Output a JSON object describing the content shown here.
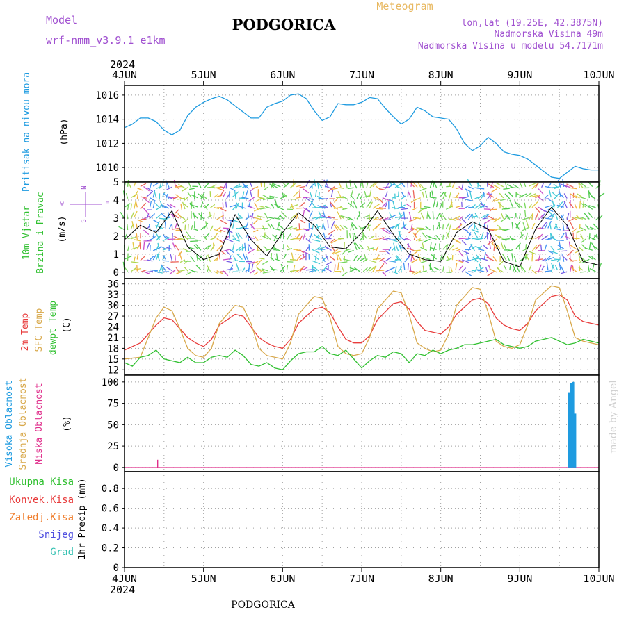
{
  "header": {
    "model_label": "Model",
    "model_name": "wrf-nmm_v3.9.1 e1km",
    "title": "PODGORICA",
    "meteogram": "Meteogram",
    "lonlat": "lon,lat (19.25E, 42.3875N)",
    "elevation": "Nadmorska Visina 49m",
    "model_elevation": "Nadmorska Visina u modelu 54.7171m",
    "year": "2024",
    "footer_title": "PODGORICA",
    "credit": "made by Angel"
  },
  "colors": {
    "pressure": "#1e9be0",
    "temp2m": "#e83c3c",
    "sfc": "#d8a84a",
    "dewpt": "#30c030",
    "high_cloud": "#1e9be0",
    "mid_cloud": "#d8a84a",
    "low_cloud": "#e0308c",
    "model": "#a050d0",
    "meteogram": "#e8b860",
    "wind_total": "#30c030",
    "total_precip": "#30c030",
    "conv_precip": "#e83c3c",
    "frozen_precip": "#f08030",
    "snow": "#5050e0",
    "hail": "#30c0b0"
  },
  "chart_data": [
    {
      "type": "line",
      "id": "pressure",
      "ylabel": "(hPa)",
      "side_labels": [
        "Pritisak na nivou mora"
      ],
      "x_ticks": [
        "4JUN",
        "5JUN",
        "6JUN",
        "7JUN",
        "8JUN",
        "9JUN",
        "10JUN"
      ],
      "ylim": [
        1008.8,
        1016.8
      ],
      "y_ticks": [
        1010,
        1012,
        1014,
        1016
      ],
      "grid": true,
      "series": [
        {
          "x": [
            0,
            0.1,
            0.2,
            0.3,
            0.4,
            0.5,
            0.6,
            0.7,
            0.8,
            0.9,
            1.0,
            1.1,
            1.2,
            1.3,
            1.4,
            1.5,
            1.6,
            1.7,
            1.8,
            1.9,
            2.0,
            2.1,
            2.2,
            2.3,
            2.4,
            2.5,
            2.6,
            2.7,
            2.8,
            2.9,
            3.0,
            3.1,
            3.2,
            3.3,
            3.4,
            3.5,
            3.6,
            3.7,
            3.8,
            3.9,
            4.0,
            4.1,
            4.2,
            4.3,
            4.4,
            4.5,
            4.6,
            4.7,
            4.8,
            4.9,
            5.0,
            5.1,
            5.2,
            5.3,
            5.4,
            5.5,
            5.6,
            5.7,
            5.8,
            5.9,
            6.0
          ],
          "values": [
            1013.3,
            1013.6,
            1014.1,
            1014.1,
            1013.8,
            1013.1,
            1012.7,
            1013.1,
            1014.3,
            1015.0,
            1015.4,
            1015.7,
            1015.9,
            1015.6,
            1015.1,
            1014.6,
            1014.1,
            1014.1,
            1015.0,
            1015.3,
            1015.5,
            1016.0,
            1016.1,
            1015.7,
            1014.7,
            1013.9,
            1014.2,
            1015.3,
            1015.2,
            1015.2,
            1015.4,
            1015.8,
            1015.7,
            1014.9,
            1014.2,
            1013.6,
            1014.0,
            1015.0,
            1014.7,
            1014.2,
            1014.1,
            1014.0,
            1013.2,
            1012.0,
            1011.4,
            1011.8,
            1012.5,
            1012.0,
            1011.3,
            1011.1,
            1011.0,
            1010.7,
            1010.2,
            1009.7,
            1009.2,
            1009.1,
            1009.6,
            1010.1,
            1009.9,
            1009.8,
            1009.8
          ]
        }
      ]
    },
    {
      "type": "line",
      "id": "wind",
      "ylabel": "(m/s)",
      "side_labels": [
        "10m Vjetar",
        "Brzina i Pravac"
      ],
      "compass": {
        "n": "N",
        "s": "S",
        "e": "E",
        "w": "W"
      },
      "x_ticks": [
        "4JUN",
        "5JUN",
        "6JUN",
        "7JUN",
        "8JUN",
        "9JUN",
        "10JUN"
      ],
      "ylim": [
        -0.35,
        5
      ],
      "y_ticks": [
        0,
        1,
        2,
        3,
        4,
        5
      ],
      "grid": true,
      "series": [
        {
          "name": "wind_speed",
          "x": [
            0,
            0.2,
            0.4,
            0.6,
            0.8,
            1.0,
            1.2,
            1.4,
            1.6,
            1.8,
            2.0,
            2.2,
            2.4,
            2.6,
            2.8,
            3.0,
            3.2,
            3.4,
            3.6,
            3.8,
            4.0,
            4.2,
            4.4,
            4.6,
            4.8,
            5.0,
            5.2,
            5.4,
            5.6,
            5.8,
            6.0
          ],
          "values": [
            1.8,
            2.6,
            2.2,
            3.4,
            1.4,
            0.7,
            1.0,
            3.2,
            1.8,
            0.9,
            2.2,
            3.3,
            2.6,
            1.4,
            1.3,
            2.2,
            3.4,
            2.1,
            1.0,
            0.7,
            0.6,
            2.2,
            2.8,
            2.4,
            0.6,
            0.3,
            2.4,
            3.6,
            2.6,
            0.6,
            0.4
          ]
        }
      ]
    },
    {
      "type": "line",
      "id": "temperature",
      "ylabel": "(C)",
      "side_labels": [
        "2m Temp",
        "SFC Temp",
        "dewpt Temp"
      ],
      "x_ticks": [
        "4JUN",
        "5JUN",
        "6JUN",
        "7JUN",
        "8JUN",
        "9JUN",
        "10JUN"
      ],
      "ylim": [
        10.5,
        37.5
      ],
      "y_ticks": [
        12,
        15,
        18,
        21,
        24,
        27,
        30,
        33,
        36
      ],
      "grid": true,
      "series": [
        {
          "name": "2m Temp",
          "x": [
            0,
            0.2,
            0.4,
            0.5,
            0.6,
            0.7,
            0.8,
            0.9,
            1.0,
            1.1,
            1.2,
            1.4,
            1.5,
            1.6,
            1.7,
            1.8,
            1.9,
            2.0,
            2.1,
            2.2,
            2.4,
            2.5,
            2.6,
            2.7,
            2.8,
            2.9,
            3.0,
            3.1,
            3.2,
            3.4,
            3.5,
            3.6,
            3.7,
            3.8,
            3.9,
            4.0,
            4.1,
            4.2,
            4.4,
            4.5,
            4.6,
            4.7,
            4.8,
            4.9,
            5.0,
            5.1,
            5.2,
            5.4,
            5.5,
            5.6,
            5.7,
            5.8,
            5.9,
            6.0
          ],
          "values": [
            17.5,
            19.5,
            24.5,
            26.5,
            26.0,
            23.5,
            21.0,
            19.5,
            18.5,
            20.5,
            24.5,
            27.5,
            27.0,
            24.0,
            21.0,
            19.5,
            18.5,
            18.0,
            20.5,
            25.0,
            29.0,
            29.5,
            28.0,
            24.0,
            20.5,
            19.5,
            19.5,
            21.5,
            26.0,
            30.5,
            31.0,
            29.0,
            25.5,
            23.0,
            22.5,
            22.0,
            24.0,
            27.5,
            31.5,
            32.0,
            30.5,
            26.5,
            24.5,
            23.5,
            23.0,
            25.0,
            28.5,
            32.5,
            33.0,
            31.5,
            27.0,
            25.5,
            25.0,
            24.5
          ]
        },
        {
          "name": "SFC Temp",
          "x": [
            0,
            0.2,
            0.4,
            0.5,
            0.6,
            0.7,
            0.8,
            0.9,
            1.0,
            1.1,
            1.2,
            1.4,
            1.5,
            1.6,
            1.7,
            1.8,
            1.9,
            2.0,
            2.1,
            2.2,
            2.4,
            2.5,
            2.6,
            2.7,
            2.8,
            2.9,
            3.0,
            3.1,
            3.2,
            3.4,
            3.5,
            3.6,
            3.7,
            3.8,
            3.9,
            4.0,
            4.1,
            4.2,
            4.4,
            4.5,
            4.6,
            4.7,
            4.8,
            4.9,
            5.0,
            5.1,
            5.2,
            5.4,
            5.5,
            5.6,
            5.7,
            5.8,
            5.9,
            6.0
          ],
          "values": [
            15.0,
            15.5,
            26.5,
            29.5,
            28.5,
            23.5,
            18.0,
            16.0,
            15.5,
            18.0,
            25.0,
            30.0,
            29.5,
            25.0,
            18.0,
            16.0,
            15.5,
            15.0,
            19.5,
            27.5,
            32.5,
            32.0,
            26.5,
            18.5,
            16.5,
            16.0,
            16.5,
            21.0,
            29.0,
            34.0,
            33.5,
            27.5,
            19.5,
            18.0,
            17.0,
            17.5,
            22.0,
            30.0,
            35.0,
            34.5,
            28.0,
            20.0,
            18.5,
            18.0,
            19.0,
            24.5,
            31.5,
            35.5,
            35.0,
            28.5,
            21.0,
            20.0,
            19.5,
            19.0
          ]
        },
        {
          "name": "dewpt Temp",
          "x": [
            0,
            0.1,
            0.2,
            0.3,
            0.4,
            0.5,
            0.6,
            0.7,
            0.8,
            0.9,
            1.0,
            1.1,
            1.2,
            1.3,
            1.4,
            1.5,
            1.6,
            1.7,
            1.8,
            1.9,
            2.0,
            2.1,
            2.2,
            2.3,
            2.4,
            2.5,
            2.6,
            2.7,
            2.8,
            2.9,
            3.0,
            3.1,
            3.2,
            3.3,
            3.4,
            3.5,
            3.6,
            3.7,
            3.8,
            3.9,
            4.0,
            4.1,
            4.2,
            4.3,
            4.4,
            4.5,
            4.6,
            4.7,
            4.8,
            4.9,
            5.0,
            5.1,
            5.2,
            5.3,
            5.4,
            5.5,
            5.6,
            5.7,
            5.8,
            5.9,
            6.0
          ],
          "values": [
            14.0,
            13.0,
            15.5,
            16.0,
            17.5,
            15.0,
            14.5,
            14.0,
            15.5,
            14.0,
            14.0,
            15.5,
            16.0,
            15.5,
            17.5,
            16.0,
            13.5,
            13.0,
            14.0,
            12.5,
            12.0,
            14.5,
            16.5,
            17.0,
            17.0,
            18.5,
            16.5,
            16.0,
            17.5,
            15.0,
            12.5,
            14.5,
            16.0,
            15.5,
            17.0,
            16.5,
            14.0,
            16.5,
            16.0,
            17.5,
            16.5,
            17.5,
            18.0,
            19.0,
            19.0,
            19.5,
            20.0,
            20.5,
            19.0,
            18.5,
            18.0,
            18.5,
            20.0,
            20.5,
            21.0,
            20.0,
            19.0,
            19.5,
            20.5,
            20.0,
            19.5
          ]
        }
      ]
    },
    {
      "type": "bar",
      "id": "cloud",
      "ylabel": "(%)",
      "side_labels": [
        "Visoka Oblacnost",
        "Srednja Oblacnost",
        "Niska Oblacnost"
      ],
      "x_ticks": [
        "4JUN",
        "5JUN",
        "6JUN",
        "7JUN",
        "8JUN",
        "9JUN",
        "10JUN"
      ],
      "ylim": [
        -5,
        108
      ],
      "y_ticks": [
        0,
        25,
        50,
        75,
        100
      ],
      "grid": true,
      "series": [
        {
          "name": "Visoka Oblacnost",
          "x": [
            5.625,
            5.65,
            5.675,
            5.7
          ],
          "values": [
            88,
            99,
            100,
            63
          ]
        },
        {
          "name": "Niska Oblacnost",
          "x": [
            0.42
          ],
          "values": [
            9
          ]
        }
      ]
    },
    {
      "type": "line",
      "id": "precip",
      "ylabel": "1hr Precip (mm)",
      "side_labels": [
        "Ukupna Kisa",
        "Konvek.Kisa",
        "Zaledj.Kisa",
        "Snijeg",
        "Grad"
      ],
      "x_ticks": [
        "4JUN",
        "5JUN",
        "6JUN",
        "7JUN",
        "8JUN",
        "9JUN",
        "10JUN"
      ],
      "ylim": [
        0,
        0.97
      ],
      "y_ticks": [
        0,
        0.2,
        0.4,
        0.6,
        0.8
      ],
      "grid": true,
      "series": []
    }
  ]
}
